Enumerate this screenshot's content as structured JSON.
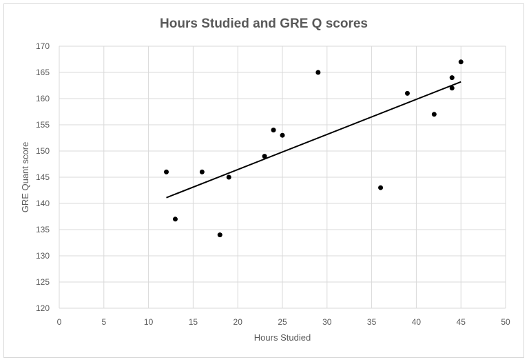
{
  "chart_data": {
    "type": "scatter",
    "title": "Hours Studied and GRE Q scores",
    "xlabel": "Hours Studied",
    "ylabel": "GRE Quant score",
    "xlim": [
      0,
      50
    ],
    "ylim": [
      120,
      170
    ],
    "xticks": [
      0,
      5,
      10,
      15,
      20,
      25,
      30,
      35,
      40,
      45,
      50
    ],
    "yticks": [
      120,
      125,
      130,
      135,
      140,
      145,
      150,
      155,
      160,
      165,
      170
    ],
    "grid": true,
    "legend": "none",
    "series": [
      {
        "points": [
          {
            "x": 12,
            "y": 146
          },
          {
            "x": 13,
            "y": 137
          },
          {
            "x": 16,
            "y": 146
          },
          {
            "x": 18,
            "y": 134
          },
          {
            "x": 19,
            "y": 145
          },
          {
            "x": 23,
            "y": 149
          },
          {
            "x": 24,
            "y": 154
          },
          {
            "x": 25,
            "y": 153
          },
          {
            "x": 29,
            "y": 165
          },
          {
            "x": 36,
            "y": 143
          },
          {
            "x": 39,
            "y": 161
          },
          {
            "x": 42,
            "y": 157
          },
          {
            "x": 44,
            "y": 164
          },
          {
            "x": 44,
            "y": 162
          },
          {
            "x": 45,
            "y": 167
          }
        ]
      }
    ],
    "trendline": {
      "type": "linear",
      "x_start": 12,
      "y_start": 141.1,
      "x_end": 45,
      "y_end": 163.2
    },
    "colors": {
      "point": "#000000",
      "trendline": "#000000",
      "grid": "#d9d9d9",
      "text": "#595959"
    }
  }
}
